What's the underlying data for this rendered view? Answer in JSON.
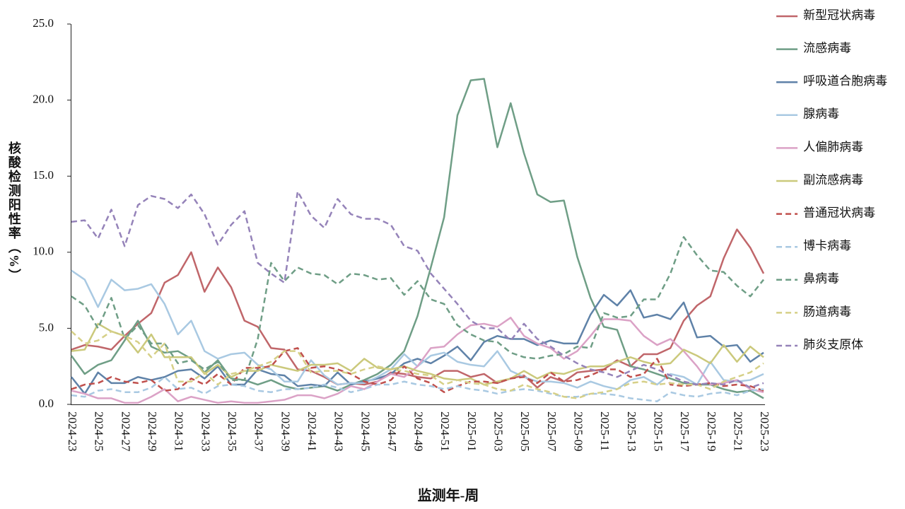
{
  "chart_data": {
    "type": "line",
    "y_label": "核酸检测阳性率（%）",
    "x_label": "监测年-周",
    "categories": [
      "2024-23",
      null,
      "2024-25",
      null,
      "2024-27",
      null,
      "2024-29",
      null,
      "2024-31",
      null,
      "2024-33",
      null,
      "2024-35",
      null,
      "2024-37",
      null,
      "2024-39",
      null,
      "2024-41",
      null,
      "2024-43",
      null,
      "2024-45",
      null,
      "2024-47",
      null,
      "2024-49",
      null,
      "2024-51",
      null,
      "2025-01",
      null,
      "2025-03",
      null,
      "2025-05",
      null,
      "2025-07",
      null,
      "2025-09",
      null,
      "2025-11",
      null,
      "2025-13",
      null,
      "2025-15",
      null,
      "2025-17",
      null,
      "2025-19",
      null,
      "2025-21",
      null,
      "2025-23"
    ],
    "ylim": [
      0,
      25
    ],
    "yticks": [
      {
        "value": 0,
        "label": "0.0"
      },
      {
        "value": 5,
        "label": "5.0"
      },
      {
        "value": 10,
        "label": "10.0"
      },
      {
        "value": 15,
        "label": "15.0"
      },
      {
        "value": 20,
        "label": "20.0"
      },
      {
        "value": 25,
        "label": "25.0"
      }
    ],
    "legend": "right",
    "series": [
      {
        "name": "新型冠状病毒",
        "color": "#c0666a",
        "dashed": false,
        "values": [
          3.6,
          3.9,
          3.8,
          3.6,
          4.5,
          5.3,
          6.0,
          8.0,
          8.5,
          10.0,
          7.4,
          9.0,
          7.7,
          5.5,
          5.1,
          3.7,
          3.6,
          2.3,
          2.2,
          1.8,
          1.3,
          1.4,
          1.3,
          1.5,
          2.1,
          2.0,
          1.8,
          1.7,
          2.2,
          2.2,
          1.8,
          2.0,
          1.4,
          1.7,
          1.9,
          1.1,
          1.8,
          1.5,
          2.1,
          2.2,
          2.3,
          2.9,
          2.5,
          3.3,
          3.3,
          3.7,
          5.5,
          6.5,
          7.1,
          9.6,
          11.5,
          10.3,
          8.6
        ]
      },
      {
        "name": "流感病毒",
        "color": "#6f9e86",
        "dashed": false,
        "values": [
          3.2,
          2.0,
          2.6,
          2.9,
          4.2,
          5.5,
          3.8,
          3.4,
          3.5,
          3.0,
          2.1,
          2.9,
          1.7,
          1.6,
          1.3,
          1.6,
          1.2,
          1.0,
          1.1,
          1.2,
          0.9,
          1.3,
          1.6,
          2.0,
          2.6,
          3.5,
          5.8,
          9.0,
          12.3,
          19.0,
          21.3,
          21.4,
          16.9,
          19.8,
          16.5,
          13.8,
          13.3,
          13.4,
          9.7,
          7.0,
          5.1,
          4.9,
          2.5,
          2.3,
          2.0,
          1.7,
          1.4,
          1.3,
          1.3,
          1.0,
          0.8,
          0.9,
          0.4
        ]
      },
      {
        "name": "呼吸道合胞病毒",
        "color": "#5f82a8",
        "dashed": false,
        "values": [
          1.8,
          0.7,
          2.1,
          1.4,
          1.4,
          1.8,
          1.6,
          1.8,
          2.2,
          2.3,
          1.7,
          2.5,
          1.3,
          1.3,
          2.3,
          2.0,
          1.9,
          1.2,
          1.3,
          1.2,
          2.1,
          1.3,
          1.5,
          1.7,
          2.0,
          2.7,
          3.0,
          2.7,
          3.2,
          3.8,
          2.9,
          4.1,
          4.5,
          4.3,
          4.3,
          3.9,
          4.2,
          4.0,
          4.0,
          5.9,
          7.2,
          6.5,
          7.5,
          5.7,
          5.9,
          5.6,
          6.7,
          4.4,
          4.5,
          3.8,
          3.9,
          2.8,
          3.4
        ]
      },
      {
        "name": "腺病毒",
        "color": "#a9c9e2",
        "dashed": false,
        "values": [
          8.8,
          8.2,
          6.4,
          8.2,
          7.5,
          7.6,
          7.9,
          6.6,
          4.6,
          5.5,
          3.5,
          3.0,
          3.3,
          3.4,
          2.6,
          2.3,
          1.5,
          1.5,
          2.9,
          1.9,
          1.3,
          1.4,
          1.4,
          1.8,
          2.3,
          3.3,
          2.5,
          3.2,
          3.4,
          2.8,
          2.6,
          2.5,
          3.5,
          2.2,
          1.8,
          1.5,
          1.5,
          1.4,
          1.1,
          1.5,
          1.2,
          1.0,
          1.6,
          1.8,
          1.3,
          2.0,
          1.8,
          1.3,
          2.8,
          1.6,
          1.5,
          1.6,
          2.0
        ]
      },
      {
        "name": "人偏肺病毒",
        "color": "#dba2c6",
        "dashed": false,
        "values": [
          0.9,
          0.7,
          0.4,
          0.4,
          0.1,
          0.1,
          0.5,
          1.0,
          0.2,
          0.5,
          0.3,
          0.1,
          0.2,
          0.1,
          0.1,
          0.2,
          0.3,
          0.6,
          0.6,
          0.4,
          0.7,
          1.2,
          1.0,
          1.5,
          2.0,
          1.8,
          2.5,
          3.7,
          3.8,
          4.6,
          5.2,
          5.3,
          5.1,
          5.7,
          4.5,
          4.0,
          3.7,
          3.0,
          3.5,
          4.5,
          5.6,
          5.6,
          5.5,
          4.5,
          3.9,
          4.3,
          3.5,
          2.5,
          1.3,
          1.4,
          1.6,
          1.0,
          0.8
        ]
      },
      {
        "name": "副流感病毒",
        "color": "#cbc97c",
        "dashed": false,
        "values": [
          3.5,
          3.6,
          5.3,
          4.8,
          4.5,
          3.4,
          4.6,
          3.1,
          3.1,
          3.1,
          2.0,
          2.6,
          1.8,
          2.2,
          2.2,
          2.6,
          2.4,
          2.2,
          2.6,
          2.6,
          2.7,
          2.2,
          3.0,
          2.4,
          2.3,
          2.5,
          2.2,
          2.0,
          1.7,
          1.6,
          1.7,
          1.3,
          1.5,
          1.7,
          2.2,
          1.7,
          2.1,
          2.0,
          2.3,
          2.5,
          2.5,
          2.8,
          3.1,
          2.8,
          2.6,
          2.7,
          3.6,
          3.2,
          2.7,
          3.9,
          2.8,
          3.8,
          3.1
        ]
      },
      {
        "name": "普通冠状病毒",
        "color": "#c0504d",
        "dashed": true,
        "values": [
          1.0,
          1.3,
          1.4,
          1.8,
          1.5,
          1.4,
          1.6,
          0.9,
          1.0,
          1.7,
          1.3,
          2.0,
          1.3,
          2.4,
          2.4,
          2.5,
          3.5,
          3.7,
          2.4,
          2.5,
          2.3,
          2.0,
          1.5,
          1.3,
          1.6,
          2.5,
          1.7,
          1.4,
          0.8,
          1.2,
          1.5,
          1.5,
          1.4,
          1.7,
          1.8,
          1.4,
          2.1,
          1.5,
          1.6,
          1.9,
          2.3,
          2.3,
          1.8,
          2.0,
          3.0,
          1.3,
          1.2,
          1.3,
          1.4,
          1.2,
          1.3,
          1.2,
          0.9
        ]
      },
      {
        "name": "博卡病毒",
        "color": "#a9c9e2",
        "dashed": true,
        "values": [
          0.6,
          0.5,
          0.9,
          1.0,
          0.8,
          0.8,
          1.1,
          1.8,
          1.0,
          1.1,
          0.7,
          1.2,
          1.3,
          1.2,
          0.9,
          0.8,
          1.0,
          1.0,
          1.1,
          1.3,
          1.1,
          0.8,
          1.0,
          1.3,
          1.3,
          1.5,
          1.3,
          1.2,
          1.0,
          1.2,
          1.0,
          0.9,
          0.7,
          0.9,
          1.0,
          0.9,
          0.7,
          0.5,
          0.5,
          0.7,
          0.7,
          0.6,
          0.4,
          0.3,
          0.2,
          0.8,
          0.6,
          0.5,
          0.7,
          0.8,
          0.6,
          0.9,
          1.0
        ]
      },
      {
        "name": "鼻病毒",
        "color": "#6f9e86",
        "dashed": true,
        "values": [
          7.1,
          6.5,
          5.0,
          7.0,
          4.3,
          5.2,
          4.0,
          4.0,
          2.7,
          2.9,
          2.3,
          2.8,
          1.6,
          1.6,
          4.3,
          9.3,
          8.1,
          9.0,
          8.6,
          8.5,
          7.9,
          8.6,
          8.5,
          8.2,
          8.3,
          7.2,
          8.1,
          6.9,
          6.6,
          5.2,
          4.6,
          4.2,
          4.1,
          3.4,
          3.1,
          3.0,
          3.2,
          3.3,
          3.8,
          3.7,
          6.0,
          5.7,
          5.8,
          6.9,
          6.9,
          8.6,
          11.0,
          9.8,
          8.8,
          8.7,
          7.8,
          7.1,
          8.2
        ]
      },
      {
        "name": "肠道病毒",
        "color": "#d6d088",
        "dashed": true,
        "values": [
          4.8,
          4.0,
          4.2,
          4.8,
          4.5,
          4.1,
          3.1,
          4.0,
          1.5,
          1.5,
          2.1,
          1.3,
          2.0,
          2.2,
          2.5,
          2.8,
          3.5,
          3.5,
          2.1,
          2.2,
          2.2,
          2.0,
          2.3,
          2.5,
          2.3,
          2.2,
          2.0,
          1.9,
          1.3,
          1.6,
          1.4,
          1.3,
          1.0,
          0.9,
          1.3,
          1.0,
          0.8,
          0.5,
          0.4,
          0.7,
          0.8,
          1.0,
          1.4,
          1.5,
          1.3,
          1.4,
          1.3,
          1.3,
          1.0,
          1.5,
          1.8,
          2.1,
          2.7
        ]
      },
      {
        "name": "肺炎支原体",
        "color": "#9583b9",
        "dashed": true,
        "values": [
          12.0,
          12.1,
          10.9,
          12.8,
          10.4,
          13.1,
          13.7,
          13.5,
          12.9,
          13.8,
          12.5,
          10.5,
          11.8,
          12.7,
          9.3,
          8.6,
          8.0,
          14.0,
          12.4,
          11.6,
          13.5,
          12.5,
          12.2,
          12.2,
          11.8,
          10.4,
          10.1,
          8.6,
          7.6,
          6.6,
          5.5,
          5.0,
          5.0,
          4.2,
          5.3,
          4.3,
          3.8,
          3.2,
          2.7,
          2.3,
          2.1,
          1.8,
          2.2,
          2.6,
          2.3,
          1.9,
          1.5,
          1.3,
          1.4,
          1.3,
          1.6,
          1.1,
          1.4
        ]
      }
    ]
  }
}
